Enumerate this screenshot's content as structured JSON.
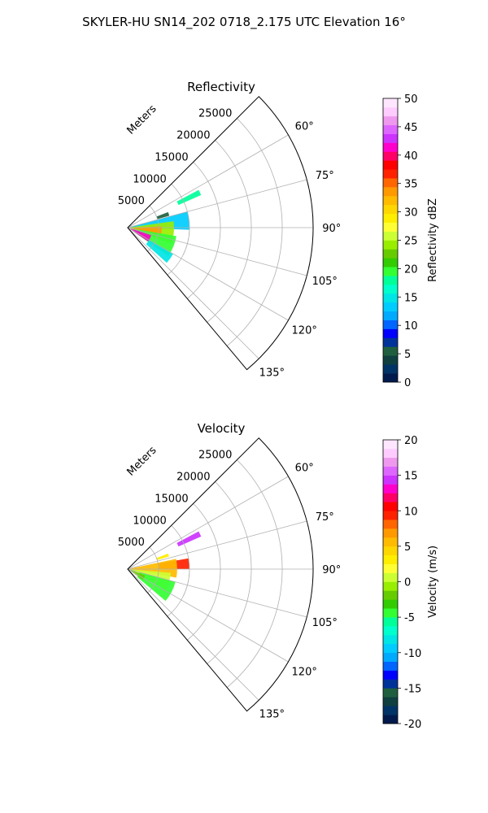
{
  "figure": {
    "title": "SKYLER-HU  SN14_202  0718_2.175 UTC Elevation 16°"
  },
  "chart_data": [
    {
      "type": "polar-sector",
      "title": "Reflectivity",
      "range_label": "Meters",
      "range_ticks": [
        "5000",
        "10000",
        "15000",
        "20000",
        "25000"
      ],
      "range_tick_values": [
        5000,
        10000,
        15000,
        20000,
        25000
      ],
      "range_max": 30000,
      "azimuth_ticks": [
        "60°",
        "75°",
        "90°",
        "105°",
        "120°",
        "135°"
      ],
      "azimuth_tick_values": [
        60,
        75,
        90,
        105,
        120,
        135
      ],
      "azimuth_range": [
        45,
        140
      ],
      "colorbar": {
        "label": "Reflectivity dBZ",
        "ticks": [
          "0",
          "5",
          "10",
          "15",
          "20",
          "25",
          "30",
          "35",
          "40",
          "45",
          "50"
        ],
        "vmin": 0,
        "vmax": 50,
        "colors": [
          "#001a4d",
          "#003366",
          "#0f3f3f",
          "#1f5f3f",
          "#003399",
          "#0000ff",
          "#0066ff",
          "#00aaff",
          "#00ccff",
          "#00e5e5",
          "#00ffcc",
          "#00ff99",
          "#33ff33",
          "#33cc00",
          "#66cc00",
          "#99ee00",
          "#ccff33",
          "#ffff33",
          "#ffee00",
          "#ffd700",
          "#ffbb00",
          "#ff9900",
          "#ff6600",
          "#ff2200",
          "#ff0000",
          "#ff0066",
          "#ff00cc",
          "#cc33ff",
          "#dd66ff",
          "#ee99ee",
          "#ffccff",
          "#ffe6ff"
        ]
      },
      "grid": true,
      "echo_regions": [
        {
          "az_min": 62,
          "az_max": 66,
          "r_min": 9000,
          "r_max": 13000,
          "value": 18
        },
        {
          "az_min": 69,
          "az_max": 74,
          "r_min": 5000,
          "r_max": 7000,
          "value": 5
        },
        {
          "az_min": 75,
          "az_max": 92,
          "r_min": 500,
          "r_max": 10000,
          "value": 14
        },
        {
          "az_min": 82,
          "az_max": 110,
          "r_min": 500,
          "r_max": 7500,
          "value": 24
        },
        {
          "az_min": 88,
          "az_max": 106,
          "r_min": 1000,
          "r_max": 5500,
          "value": 33
        },
        {
          "az_min": 100,
          "az_max": 125,
          "r_min": 1000,
          "r_max": 8000,
          "value": 19
        },
        {
          "az_min": 108,
          "az_max": 124,
          "r_min": 500,
          "r_max": 4000,
          "value": 42
        },
        {
          "az_min": 120,
          "az_max": 132,
          "r_min": 4000,
          "r_max": 8500,
          "value": 15
        }
      ]
    },
    {
      "type": "polar-sector",
      "title": "Velocity",
      "range_label": "Meters",
      "range_ticks": [
        "5000",
        "10000",
        "15000",
        "20000",
        "25000"
      ],
      "range_tick_values": [
        5000,
        10000,
        15000,
        20000,
        25000
      ],
      "range_max": 30000,
      "azimuth_ticks": [
        "60°",
        "75°",
        "90°",
        "105°",
        "120°",
        "135°"
      ],
      "azimuth_tick_values": [
        60,
        75,
        90,
        105,
        120,
        135
      ],
      "azimuth_range": [
        45,
        140
      ],
      "colorbar": {
        "label": "Velocity (m/s)",
        "ticks": [
          "-20",
          "-15",
          "-10",
          "-5",
          "0",
          "5",
          "10",
          "15",
          "20"
        ],
        "vmin": -20,
        "vmax": 20,
        "colors": [
          "#001a4d",
          "#003366",
          "#0f3f3f",
          "#1f5f3f",
          "#003399",
          "#0000ff",
          "#0066ff",
          "#00aaff",
          "#00ccff",
          "#00e5e5",
          "#00ffcc",
          "#00ff99",
          "#33ff33",
          "#33cc00",
          "#66cc00",
          "#99ee00",
          "#ccff33",
          "#ffff33",
          "#ffee00",
          "#ffd700",
          "#ffbb00",
          "#ff9900",
          "#ff6600",
          "#ff2200",
          "#ff0000",
          "#ff0066",
          "#ff00cc",
          "#cc33ff",
          "#dd66ff",
          "#ee99ee",
          "#ffccff",
          "#ffe6ff"
        ]
      },
      "grid": true,
      "echo_regions": [
        {
          "az_min": 62,
          "az_max": 66,
          "r_min": 9000,
          "r_max": 13000,
          "value": 14
        },
        {
          "az_min": 69,
          "az_max": 73,
          "r_min": 5000,
          "r_max": 7000,
          "value": 3
        },
        {
          "az_min": 80,
          "az_max": 90,
          "r_min": 5000,
          "r_max": 10000,
          "value": 9
        },
        {
          "az_min": 78,
          "az_max": 100,
          "r_min": 500,
          "r_max": 8000,
          "value": 5
        },
        {
          "az_min": 95,
          "az_max": 118,
          "r_min": 500,
          "r_max": 7000,
          "value": 1
        },
        {
          "az_min": 105,
          "az_max": 130,
          "r_min": 2000,
          "r_max": 8000,
          "value": -4
        },
        {
          "az_min": 110,
          "az_max": 125,
          "r_min": 500,
          "r_max": 3000,
          "value": -2
        }
      ]
    }
  ]
}
